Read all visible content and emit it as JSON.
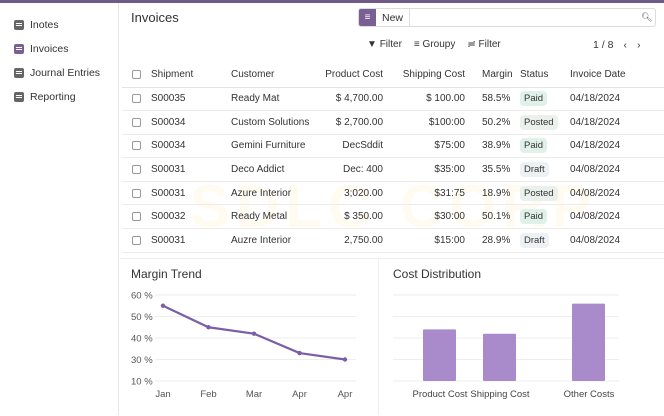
{
  "sidebar": {
    "items": [
      {
        "label": "Inotes",
        "icon": "document-icon"
      },
      {
        "label": "Invoices",
        "icon": "invoice-icon"
      },
      {
        "label": "Journal Entries",
        "icon": "journal-icon"
      },
      {
        "label": "Reporting",
        "icon": "report-icon"
      }
    ],
    "active": "Invoices"
  },
  "header": {
    "title": "Invoices",
    "new_label": "New",
    "search_value": "",
    "search_placeholder": ""
  },
  "toolbar": {
    "filter": "Filter",
    "groupby": "Groupy",
    "filter2": "Filter",
    "pager": "1 / 8",
    "prev": "‹",
    "next": "›"
  },
  "table": {
    "columns": [
      "Shipment",
      "Customer",
      "Product Cost",
      "Shipping Cost",
      "Margin",
      "Status",
      "Invoice Date"
    ],
    "rows": [
      {
        "shipment": "S00035",
        "customer": "Ready Mat",
        "product_cost": "$ 4,700.00",
        "shipping_cost": "$ 100.00",
        "margin": "58.5%",
        "status": "Paid",
        "date": "04/18/2024"
      },
      {
        "shipment": "S00034",
        "customer": "Custom Solutions",
        "product_cost": "$ 2,700.00",
        "shipping_cost": "$100:00",
        "margin": "50.2%",
        "status": "Posted",
        "date": "04/18/2024"
      },
      {
        "shipment": "S00034",
        "customer": "Gemini Furniture",
        "product_cost": "DecSddit",
        "shipping_cost": "$75:00",
        "margin": "38.9%",
        "status": "Paid",
        "date": "04/18/2024"
      },
      {
        "shipment": "S00031",
        "customer": "Deco Addict",
        "product_cost": "Dec: 400",
        "shipping_cost": "$35:00",
        "margin": "35.5%",
        "status": "Draft",
        "date": "04/08/2024"
      },
      {
        "shipment": "S00031",
        "customer": "Azure Interior",
        "product_cost": "3;020.00",
        "shipping_cost": "$31:75",
        "margin": "18.9%",
        "status": "Posted",
        "date": "04/08/2024"
      },
      {
        "shipment": "S00032",
        "customer": "Ready Metal",
        "product_cost": "$ 350.00",
        "shipping_cost": "$30:00",
        "margin": "50.1%",
        "status": "Paid",
        "date": "04/08/2024"
      },
      {
        "shipment": "S00031",
        "customer": "Auzre Interior",
        "product_cost": "2,750.00",
        "shipping_cost": "$15:00",
        "margin": "28.9%",
        "status": "Draft",
        "date": "04/08/2024"
      }
    ]
  },
  "watermark": "SDLC CORP",
  "colors": {
    "accent": "#7a5f95",
    "line": "#7b5ea7",
    "bar": "#a98bcb"
  },
  "chart_data": [
    {
      "type": "line",
      "title": "Margin Trend",
      "categories": [
        "Jan",
        "Feb",
        "Mar",
        "Apr",
        "Apr"
      ],
      "values": [
        55,
        45,
        42,
        33,
        30
      ],
      "yticks": [
        "60 %",
        "50 %",
        "40 %",
        "30 %",
        "10 %"
      ],
      "ytick_values": [
        60,
        50,
        40,
        30,
        10
      ],
      "grid": true
    },
    {
      "type": "bar",
      "title": "Cost Distribution",
      "categories": [
        "Product Cost",
        "Shipping Cost",
        "Other Costs"
      ],
      "values": [
        60,
        55,
        90
      ],
      "ylim": [
        0,
        100
      ],
      "grid": true
    }
  ]
}
